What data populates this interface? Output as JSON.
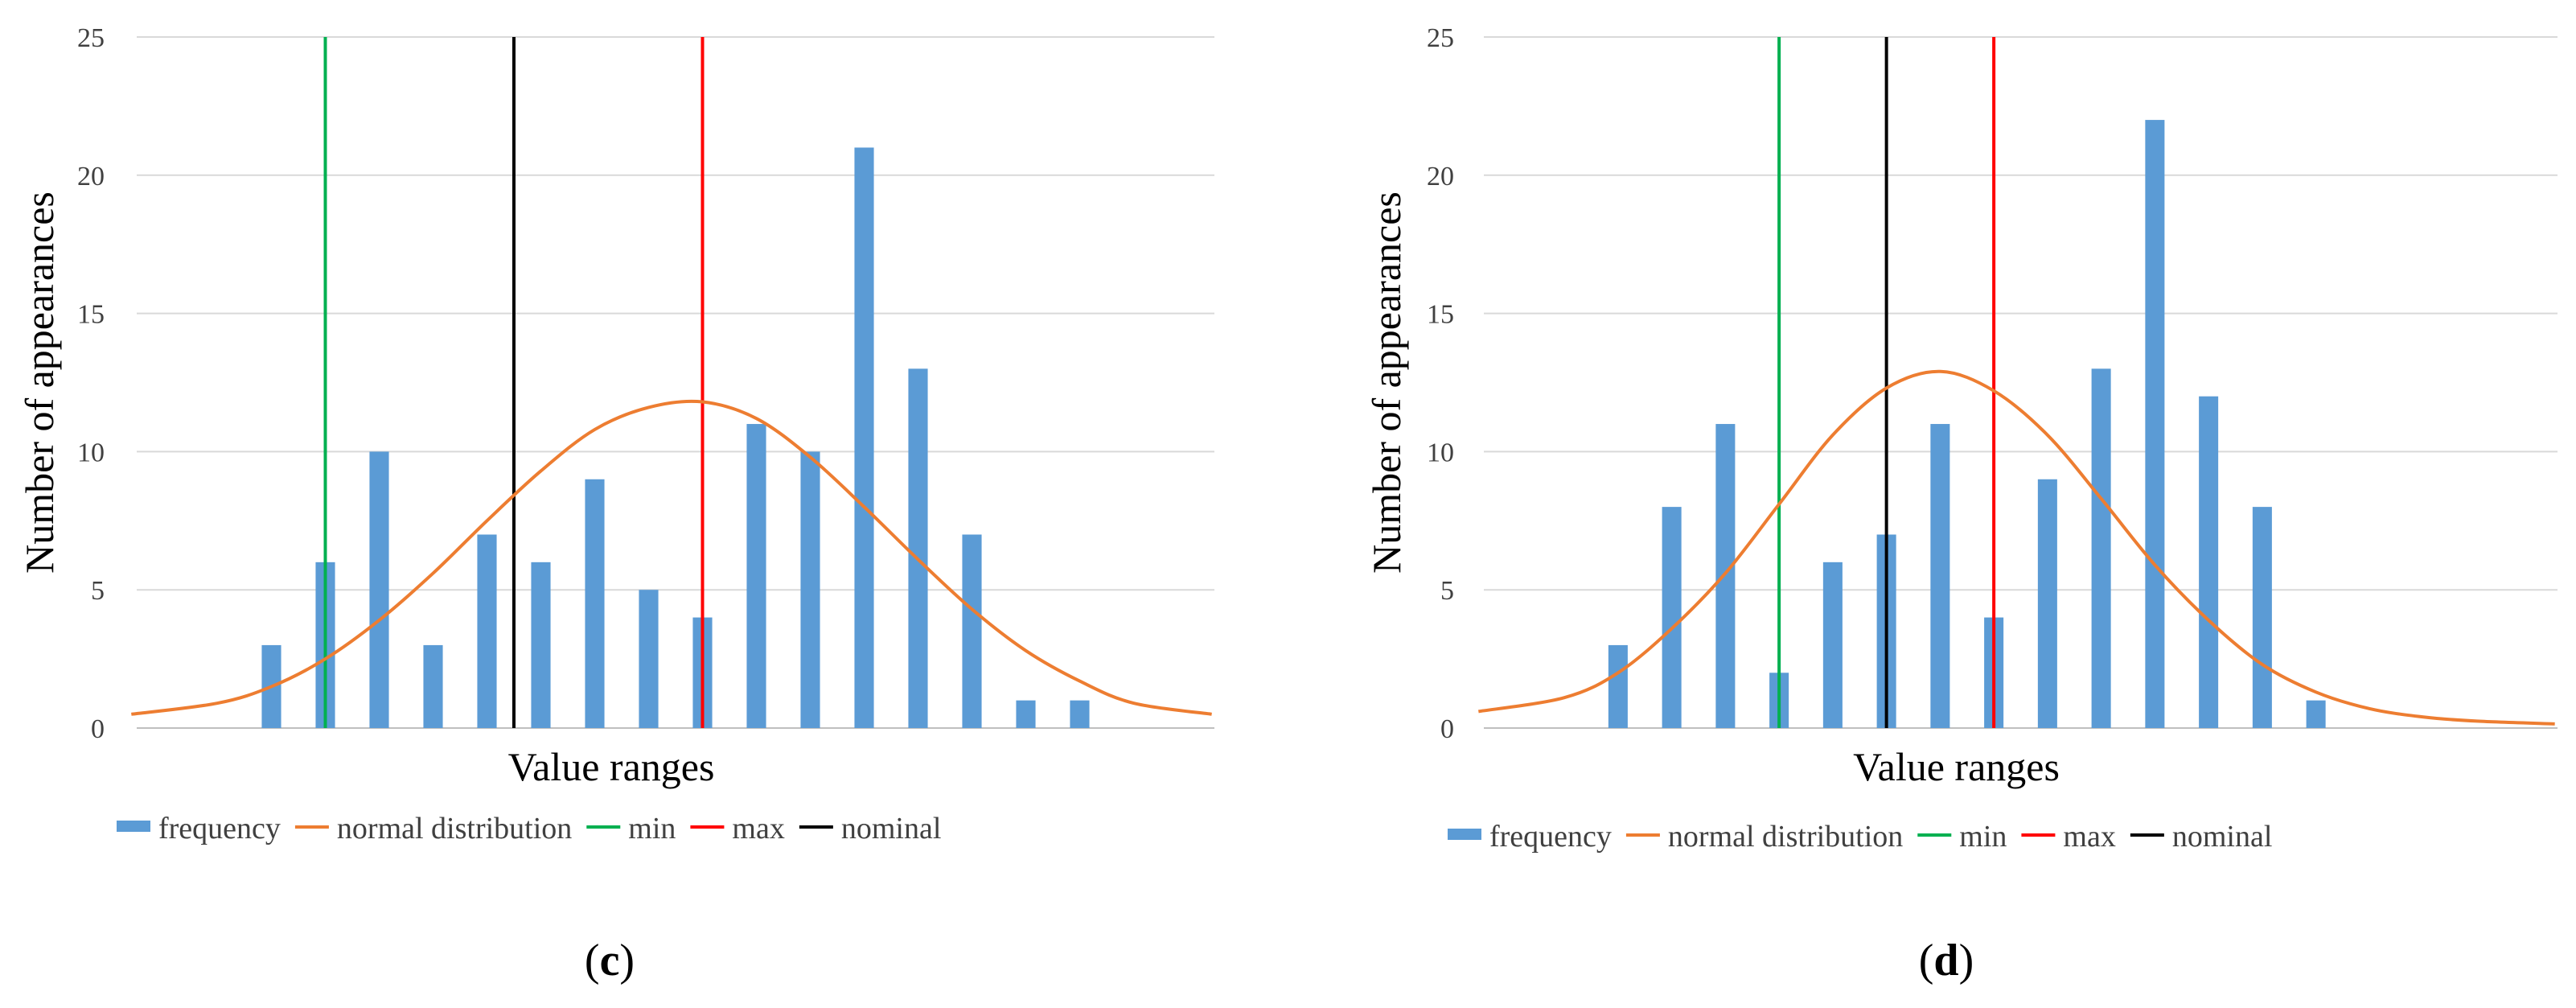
{
  "colors": {
    "frequency": "#5b9bd5",
    "normal": "#ed7d31",
    "min": "#00b050",
    "max": "#ff0000",
    "nominal": "#000000",
    "grid": "#d9d9d9",
    "axis": "#bfbfbf"
  },
  "chart_data": [
    {
      "type": "bar",
      "panel": "c",
      "xlabel": "Value ranges",
      "ylabel": "Number of appearances",
      "ylim": [
        0,
        25
      ],
      "yticks": [
        "0",
        "5",
        "10",
        "15",
        "20",
        "25"
      ],
      "categories_count": 20,
      "frequency": [
        0,
        0,
        3,
        6,
        10,
        3,
        7,
        6,
        9,
        5,
        4,
        11,
        10,
        21,
        13,
        7,
        1,
        1,
        0,
        0
      ],
      "normal_distribution": [
        0.5,
        0.9,
        1.5,
        2.5,
        3.9,
        5.6,
        7.5,
        9.3,
        10.8,
        11.6,
        11.8,
        11.2,
        9.8,
        8.0,
        6.1,
        4.3,
        2.8,
        1.7,
        0.9,
        0.5
      ],
      "min_position": 3,
      "max_position": 10,
      "nominal_position": 6.5,
      "legend": [
        "frequency",
        "normal distribution",
        "min",
        "max",
        "nominal"
      ]
    },
    {
      "type": "bar",
      "panel": "d",
      "xlabel": "Value ranges",
      "ylabel": "Number of appearances",
      "ylim": [
        0,
        25
      ],
      "yticks": [
        "0",
        "5",
        "10",
        "15",
        "20",
        "25"
      ],
      "categories_count": 20,
      "frequency": [
        0,
        0,
        3,
        8,
        11,
        2,
        6,
        7,
        11,
        4,
        9,
        13,
        22,
        12,
        8,
        1,
        0,
        0,
        0,
        0
      ],
      "normal_distribution": [
        0.6,
        1.1,
        2.0,
        3.6,
        5.6,
        8.1,
        10.6,
        12.3,
        12.9,
        12.2,
        10.6,
        8.3,
        5.9,
        3.9,
        2.3,
        1.3,
        0.7,
        0.4,
        0.25,
        0.15
      ],
      "min_position": 5,
      "max_position": 9,
      "nominal_position": 7,
      "legend": [
        "frequency",
        "normal distribution",
        "min",
        "max",
        "nominal"
      ]
    }
  ],
  "panels": [
    {
      "label_open": "(",
      "label_letter": "c",
      "label_close": ")"
    },
    {
      "label_open": "(",
      "label_letter": "d",
      "label_close": ")"
    }
  ]
}
